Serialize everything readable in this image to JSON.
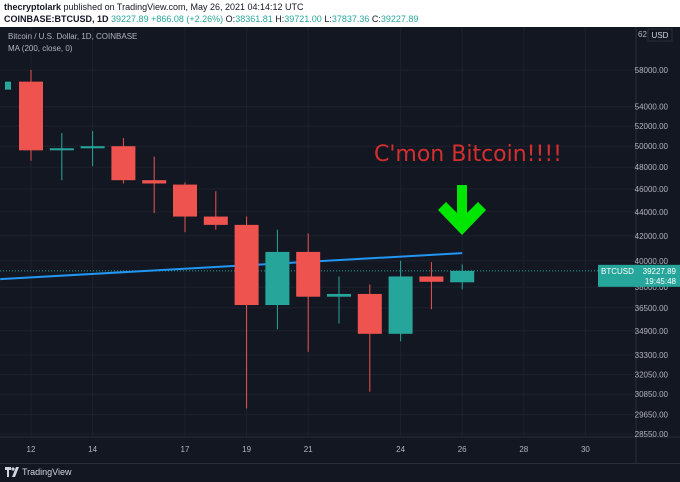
{
  "header": {
    "author": "thecryptolark",
    "published_text": "published on TradingView.com, May 26, 2021 04:14:12 UTC",
    "symbol": "COINBASE:BTCUSD, 1D",
    "last": "39227.89",
    "change": "+866.08 (+2.26%)",
    "o_label": "O:",
    "o_value": "38361.81",
    "h_label": "H:",
    "h_value": "39721.00",
    "l_label": "L:",
    "l_value": "37837.36",
    "c_label": "C:",
    "c_value": "39227.89"
  },
  "legend": {
    "title": "Bitcoin / U.S. Dollar, 1D, COINBASE",
    "indicator": "MA (200, close, 0)"
  },
  "annotation": {
    "text": "C'mon Bitcoin!!!!",
    "arrow_icon": "down-arrow-icon"
  },
  "price_tag": {
    "symbol": "BTCUSD",
    "price": "39227.89",
    "timer": "19:45:48"
  },
  "currency": "USD",
  "axis_top_label": "62",
  "footer": {
    "brand": "TradingView"
  },
  "colors": {
    "bull": "#26a69a",
    "bear": "#ef5350",
    "ma": "#2196f3",
    "annotation": "#d32f2f",
    "arrow": "#00e600",
    "background": "#131722"
  },
  "chart_data": {
    "type": "candlestick",
    "title": "Bitcoin / U.S. Dollar, 1D, COINBASE",
    "x_ticks": [
      "12",
      "14",
      "17",
      "19",
      "21",
      "24",
      "26",
      "28",
      "30"
    ],
    "y_ticks": [
      "58000.00",
      "54000.00",
      "52000.00",
      "50000.00",
      "48000.00",
      "46000.00",
      "44000.00",
      "42000.00",
      "40000.00",
      "38000.00",
      "36500.00",
      "34900.00",
      "33300.00",
      "32050.00",
      "30850.00",
      "29650.00",
      "28550.00"
    ],
    "y_scale": "log",
    "candles": [
      {
        "day": 12,
        "open": 56700,
        "high": 58000,
        "low": 48600,
        "close": 49600
      },
      {
        "day": 13,
        "open": 49700,
        "high": 51300,
        "low": 46800,
        "close": 49800
      },
      {
        "day": 14,
        "open": 49800,
        "high": 51500,
        "low": 48100,
        "close": 50000
      },
      {
        "day": 15,
        "open": 50000,
        "high": 50800,
        "low": 46500,
        "close": 46800
      },
      {
        "day": 16,
        "open": 46800,
        "high": 49000,
        "low": 43900,
        "close": 46500
      },
      {
        "day": 17,
        "open": 46400,
        "high": 46600,
        "low": 42300,
        "close": 43600
      },
      {
        "day": 18,
        "open": 43600,
        "high": 45800,
        "low": 42500,
        "close": 42900
      },
      {
        "day": 19,
        "open": 42900,
        "high": 43600,
        "low": 30000,
        "close": 36700
      },
      {
        "day": 20,
        "open": 36700,
        "high": 42500,
        "low": 35000,
        "close": 40700
      },
      {
        "day": 21,
        "open": 40700,
        "high": 42200,
        "low": 33500,
        "close": 37300
      },
      {
        "day": 22,
        "open": 37300,
        "high": 38800,
        "low": 35400,
        "close": 37500
      },
      {
        "day": 23,
        "open": 37500,
        "high": 38200,
        "low": 31000,
        "close": 34700
      },
      {
        "day": 24,
        "open": 34700,
        "high": 40000,
        "low": 34200,
        "close": 38800
      },
      {
        "day": 25,
        "open": 38800,
        "high": 39900,
        "low": 36400,
        "close": 38400
      },
      {
        "day": 26,
        "open": 38362,
        "high": 39721,
        "low": 37837,
        "close": 39228
      }
    ],
    "ma200": [
      {
        "day": 11,
        "value": 38600
      },
      {
        "day": 26,
        "value": 40600
      }
    ],
    "last_price": "39227.89"
  }
}
